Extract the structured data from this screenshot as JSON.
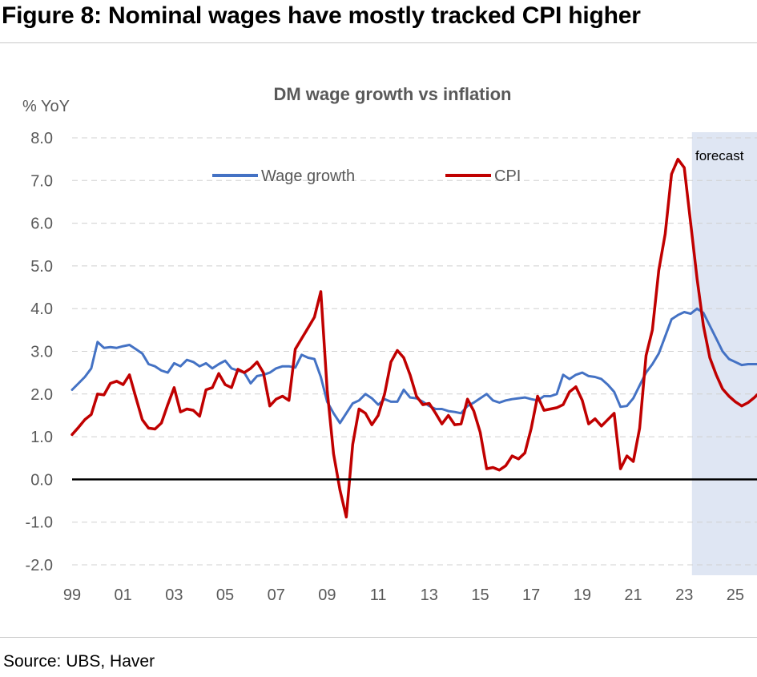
{
  "figure": {
    "title": "Figure 8: Nominal wages have mostly tracked CPI higher",
    "source": "Source: UBS, Haver"
  },
  "chart_data": {
    "type": "line",
    "title": "DM wage growth vs inflation",
    "ylabel": "% YoY",
    "ylim": [
      -2.0,
      8.0
    ],
    "xlim": [
      1999.0,
      2025.85
    ],
    "y_ticks": [
      "8.0",
      "7.0",
      "6.0",
      "5.0",
      "4.0",
      "3.0",
      "2.0",
      "1.0",
      "0.0",
      "-1.0",
      "-2.0"
    ],
    "y_tick_values": [
      8,
      7,
      6,
      5,
      4,
      3,
      2,
      1,
      0,
      -1,
      -2
    ],
    "x_ticks": [
      "99",
      "01",
      "03",
      "05",
      "07",
      "09",
      "11",
      "13",
      "15",
      "17",
      "19",
      "21",
      "23",
      "25"
    ],
    "x_tick_values": [
      1999,
      2001,
      2003,
      2005,
      2007,
      2009,
      2011,
      2013,
      2015,
      2017,
      2019,
      2021,
      2023,
      2025
    ],
    "grid": "horizontal dashed",
    "forecast": {
      "label": "forecast",
      "start": 2023.3,
      "color": "#dfe6f3"
    },
    "legend_position": "top",
    "series": [
      {
        "name": "Wage growth",
        "color": "#4472c4",
        "points": [
          [
            1999.0,
            2.1
          ],
          [
            1999.25,
            2.25
          ],
          [
            1999.5,
            2.4
          ],
          [
            1999.75,
            2.6
          ],
          [
            2000.0,
            3.22
          ],
          [
            2000.25,
            3.08
          ],
          [
            2000.5,
            3.1
          ],
          [
            2000.75,
            3.08
          ],
          [
            2001.0,
            3.12
          ],
          [
            2001.25,
            3.15
          ],
          [
            2001.5,
            3.05
          ],
          [
            2001.75,
            2.95
          ],
          [
            2002.0,
            2.7
          ],
          [
            2002.25,
            2.65
          ],
          [
            2002.5,
            2.55
          ],
          [
            2002.75,
            2.5
          ],
          [
            2003.0,
            2.72
          ],
          [
            2003.25,
            2.65
          ],
          [
            2003.5,
            2.8
          ],
          [
            2003.75,
            2.75
          ],
          [
            2004.0,
            2.65
          ],
          [
            2004.25,
            2.72
          ],
          [
            2004.5,
            2.6
          ],
          [
            2004.75,
            2.7
          ],
          [
            2005.0,
            2.78
          ],
          [
            2005.25,
            2.6
          ],
          [
            2005.5,
            2.55
          ],
          [
            2005.75,
            2.5
          ],
          [
            2006.0,
            2.25
          ],
          [
            2006.25,
            2.42
          ],
          [
            2006.5,
            2.45
          ],
          [
            2006.75,
            2.5
          ],
          [
            2007.0,
            2.6
          ],
          [
            2007.25,
            2.65
          ],
          [
            2007.5,
            2.65
          ],
          [
            2007.75,
            2.62
          ],
          [
            2008.0,
            2.92
          ],
          [
            2008.25,
            2.85
          ],
          [
            2008.5,
            2.82
          ],
          [
            2008.75,
            2.4
          ],
          [
            2009.0,
            1.82
          ],
          [
            2009.25,
            1.55
          ],
          [
            2009.5,
            1.32
          ],
          [
            2009.75,
            1.55
          ],
          [
            2010.0,
            1.78
          ],
          [
            2010.25,
            1.85
          ],
          [
            2010.5,
            2.0
          ],
          [
            2010.75,
            1.9
          ],
          [
            2011.0,
            1.75
          ],
          [
            2011.25,
            1.88
          ],
          [
            2011.5,
            1.82
          ],
          [
            2011.75,
            1.82
          ],
          [
            2012.0,
            2.1
          ],
          [
            2012.25,
            1.92
          ],
          [
            2012.5,
            1.9
          ],
          [
            2012.75,
            1.82
          ],
          [
            2013.0,
            1.72
          ],
          [
            2013.25,
            1.65
          ],
          [
            2013.5,
            1.65
          ],
          [
            2013.75,
            1.6
          ],
          [
            2014.0,
            1.58
          ],
          [
            2014.25,
            1.55
          ],
          [
            2014.5,
            1.72
          ],
          [
            2014.75,
            1.8
          ],
          [
            2015.0,
            1.9
          ],
          [
            2015.25,
            2.0
          ],
          [
            2015.5,
            1.85
          ],
          [
            2015.75,
            1.8
          ],
          [
            2016.0,
            1.85
          ],
          [
            2016.25,
            1.88
          ],
          [
            2016.5,
            1.9
          ],
          [
            2016.75,
            1.92
          ],
          [
            2017.0,
            1.88
          ],
          [
            2017.25,
            1.85
          ],
          [
            2017.5,
            1.95
          ],
          [
            2017.75,
            1.95
          ],
          [
            2018.0,
            2.0
          ],
          [
            2018.25,
            2.45
          ],
          [
            2018.5,
            2.35
          ],
          [
            2018.75,
            2.45
          ],
          [
            2019.0,
            2.5
          ],
          [
            2019.25,
            2.42
          ],
          [
            2019.5,
            2.4
          ],
          [
            2019.75,
            2.35
          ],
          [
            2020.0,
            2.22
          ],
          [
            2020.25,
            2.05
          ],
          [
            2020.5,
            1.7
          ],
          [
            2020.75,
            1.72
          ],
          [
            2021.0,
            1.9
          ],
          [
            2021.25,
            2.2
          ],
          [
            2021.5,
            2.5
          ],
          [
            2021.75,
            2.7
          ],
          [
            2022.0,
            2.95
          ],
          [
            2022.25,
            3.35
          ],
          [
            2022.5,
            3.75
          ],
          [
            2022.75,
            3.85
          ],
          [
            2023.0,
            3.92
          ],
          [
            2023.25,
            3.88
          ],
          [
            2023.5,
            4.0
          ],
          [
            2023.75,
            3.9
          ],
          [
            2024.0,
            3.6
          ],
          [
            2024.25,
            3.3
          ],
          [
            2024.5,
            3.0
          ],
          [
            2024.75,
            2.82
          ],
          [
            2025.0,
            2.75
          ],
          [
            2025.25,
            2.68
          ],
          [
            2025.5,
            2.7
          ],
          [
            2025.85,
            2.7
          ]
        ]
      },
      {
        "name": "CPI",
        "color": "#c00000",
        "points": [
          [
            1999.0,
            1.05
          ],
          [
            1999.25,
            1.22
          ],
          [
            1999.5,
            1.4
          ],
          [
            1999.75,
            1.52
          ],
          [
            2000.0,
            2.0
          ],
          [
            2000.25,
            1.98
          ],
          [
            2000.5,
            2.25
          ],
          [
            2000.75,
            2.3
          ],
          [
            2001.0,
            2.22
          ],
          [
            2001.25,
            2.45
          ],
          [
            2001.5,
            1.92
          ],
          [
            2001.75,
            1.4
          ],
          [
            2002.0,
            1.2
          ],
          [
            2002.25,
            1.18
          ],
          [
            2002.5,
            1.32
          ],
          [
            2002.75,
            1.75
          ],
          [
            2003.0,
            2.15
          ],
          [
            2003.25,
            1.58
          ],
          [
            2003.5,
            1.65
          ],
          [
            2003.75,
            1.62
          ],
          [
            2004.0,
            1.48
          ],
          [
            2004.25,
            2.1
          ],
          [
            2004.5,
            2.15
          ],
          [
            2004.75,
            2.48
          ],
          [
            2005.0,
            2.22
          ],
          [
            2005.25,
            2.15
          ],
          [
            2005.5,
            2.58
          ],
          [
            2005.75,
            2.5
          ],
          [
            2006.0,
            2.6
          ],
          [
            2006.25,
            2.75
          ],
          [
            2006.5,
            2.5
          ],
          [
            2006.75,
            1.72
          ],
          [
            2007.0,
            1.88
          ],
          [
            2007.25,
            1.95
          ],
          [
            2007.5,
            1.85
          ],
          [
            2007.75,
            3.05
          ],
          [
            2008.0,
            3.3
          ],
          [
            2008.25,
            3.55
          ],
          [
            2008.5,
            3.8
          ],
          [
            2008.75,
            4.4
          ],
          [
            2009.0,
            2.1
          ],
          [
            2009.25,
            0.6
          ],
          [
            2009.5,
            -0.25
          ],
          [
            2009.75,
            -0.88
          ],
          [
            2010.0,
            0.82
          ],
          [
            2010.25,
            1.65
          ],
          [
            2010.5,
            1.55
          ],
          [
            2010.75,
            1.28
          ],
          [
            2011.0,
            1.5
          ],
          [
            2011.25,
            2.0
          ],
          [
            2011.5,
            2.75
          ],
          [
            2011.75,
            3.02
          ],
          [
            2012.0,
            2.85
          ],
          [
            2012.25,
            2.45
          ],
          [
            2012.5,
            1.95
          ],
          [
            2012.75,
            1.75
          ],
          [
            2013.0,
            1.78
          ],
          [
            2013.25,
            1.55
          ],
          [
            2013.5,
            1.3
          ],
          [
            2013.75,
            1.5
          ],
          [
            2014.0,
            1.28
          ],
          [
            2014.25,
            1.3
          ],
          [
            2014.5,
            1.88
          ],
          [
            2014.75,
            1.6
          ],
          [
            2015.0,
            1.1
          ],
          [
            2015.25,
            0.25
          ],
          [
            2015.5,
            0.28
          ],
          [
            2015.75,
            0.22
          ],
          [
            2016.0,
            0.32
          ],
          [
            2016.25,
            0.55
          ],
          [
            2016.5,
            0.48
          ],
          [
            2016.75,
            0.62
          ],
          [
            2017.0,
            1.2
          ],
          [
            2017.25,
            1.95
          ],
          [
            2017.5,
            1.62
          ],
          [
            2017.75,
            1.65
          ],
          [
            2018.0,
            1.68
          ],
          [
            2018.25,
            1.75
          ],
          [
            2018.5,
            2.05
          ],
          [
            2018.75,
            2.17
          ],
          [
            2019.0,
            1.85
          ],
          [
            2019.25,
            1.3
          ],
          [
            2019.5,
            1.42
          ],
          [
            2019.75,
            1.25
          ],
          [
            2020.0,
            1.4
          ],
          [
            2020.25,
            1.55
          ],
          [
            2020.5,
            0.25
          ],
          [
            2020.75,
            0.55
          ],
          [
            2021.0,
            0.42
          ],
          [
            2021.25,
            1.2
          ],
          [
            2021.5,
            2.9
          ],
          [
            2021.75,
            3.5
          ],
          [
            2022.0,
            4.9
          ],
          [
            2022.25,
            5.75
          ],
          [
            2022.5,
            7.15
          ],
          [
            2022.75,
            7.5
          ],
          [
            2023.0,
            7.3
          ],
          [
            2023.25,
            6.0
          ],
          [
            2023.5,
            4.7
          ],
          [
            2023.75,
            3.6
          ],
          [
            2024.0,
            2.85
          ],
          [
            2024.25,
            2.45
          ],
          [
            2024.5,
            2.12
          ],
          [
            2024.75,
            1.95
          ],
          [
            2025.0,
            1.82
          ],
          [
            2025.25,
            1.72
          ],
          [
            2025.5,
            1.8
          ],
          [
            2025.75,
            1.92
          ],
          [
            2025.85,
            1.98
          ]
        ]
      }
    ]
  }
}
